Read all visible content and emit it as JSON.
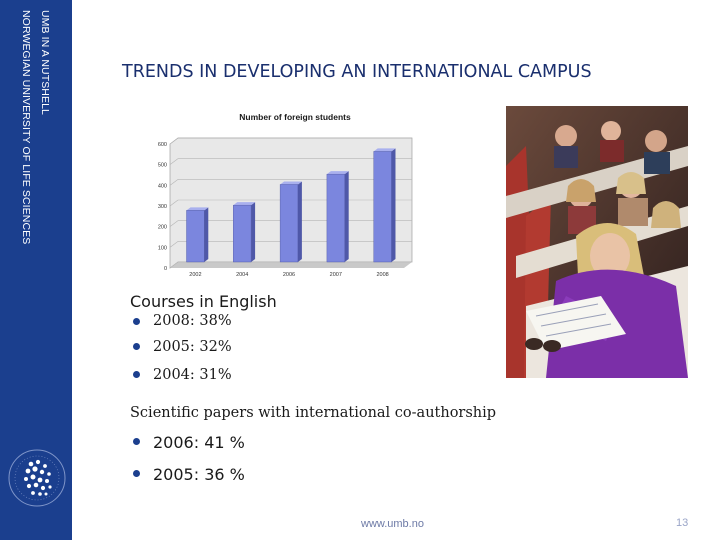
{
  "sidebar": {
    "line1": "UMB IN A NUTSHELL",
    "line2": "NORWEGIAN UNIVERSITY OF LIFE SCIENCES",
    "color": "#1b3f8e"
  },
  "slide": {
    "title": "TRENDS IN DEVELOPING AN INTERNATIONAL CAMPUS"
  },
  "chart_data": {
    "type": "bar",
    "title": "Number of foreign students",
    "categories": [
      "2002",
      "2004",
      "2006",
      "2007",
      "2008"
    ],
    "values": [
      250,
      275,
      375,
      425,
      535
    ],
    "yticks": [
      "0",
      "100",
      "200",
      "300",
      "400",
      "500",
      "600"
    ],
    "ylim": [
      0,
      600
    ],
    "grid": true,
    "bar_color": "#7b86de"
  },
  "courses": {
    "heading": "Courses in English",
    "items": [
      "2008: 38%",
      "2005: 32%",
      "2004: 31%"
    ]
  },
  "papers": {
    "heading": "Scientific papers with international co-authorship",
    "items": [
      "2006: 41 %",
      "2005: 36 %"
    ]
  },
  "footer": {
    "url": "www.umb.no",
    "page": "13"
  },
  "photo": {
    "description_icon": "students-lecture-hall-photo"
  }
}
